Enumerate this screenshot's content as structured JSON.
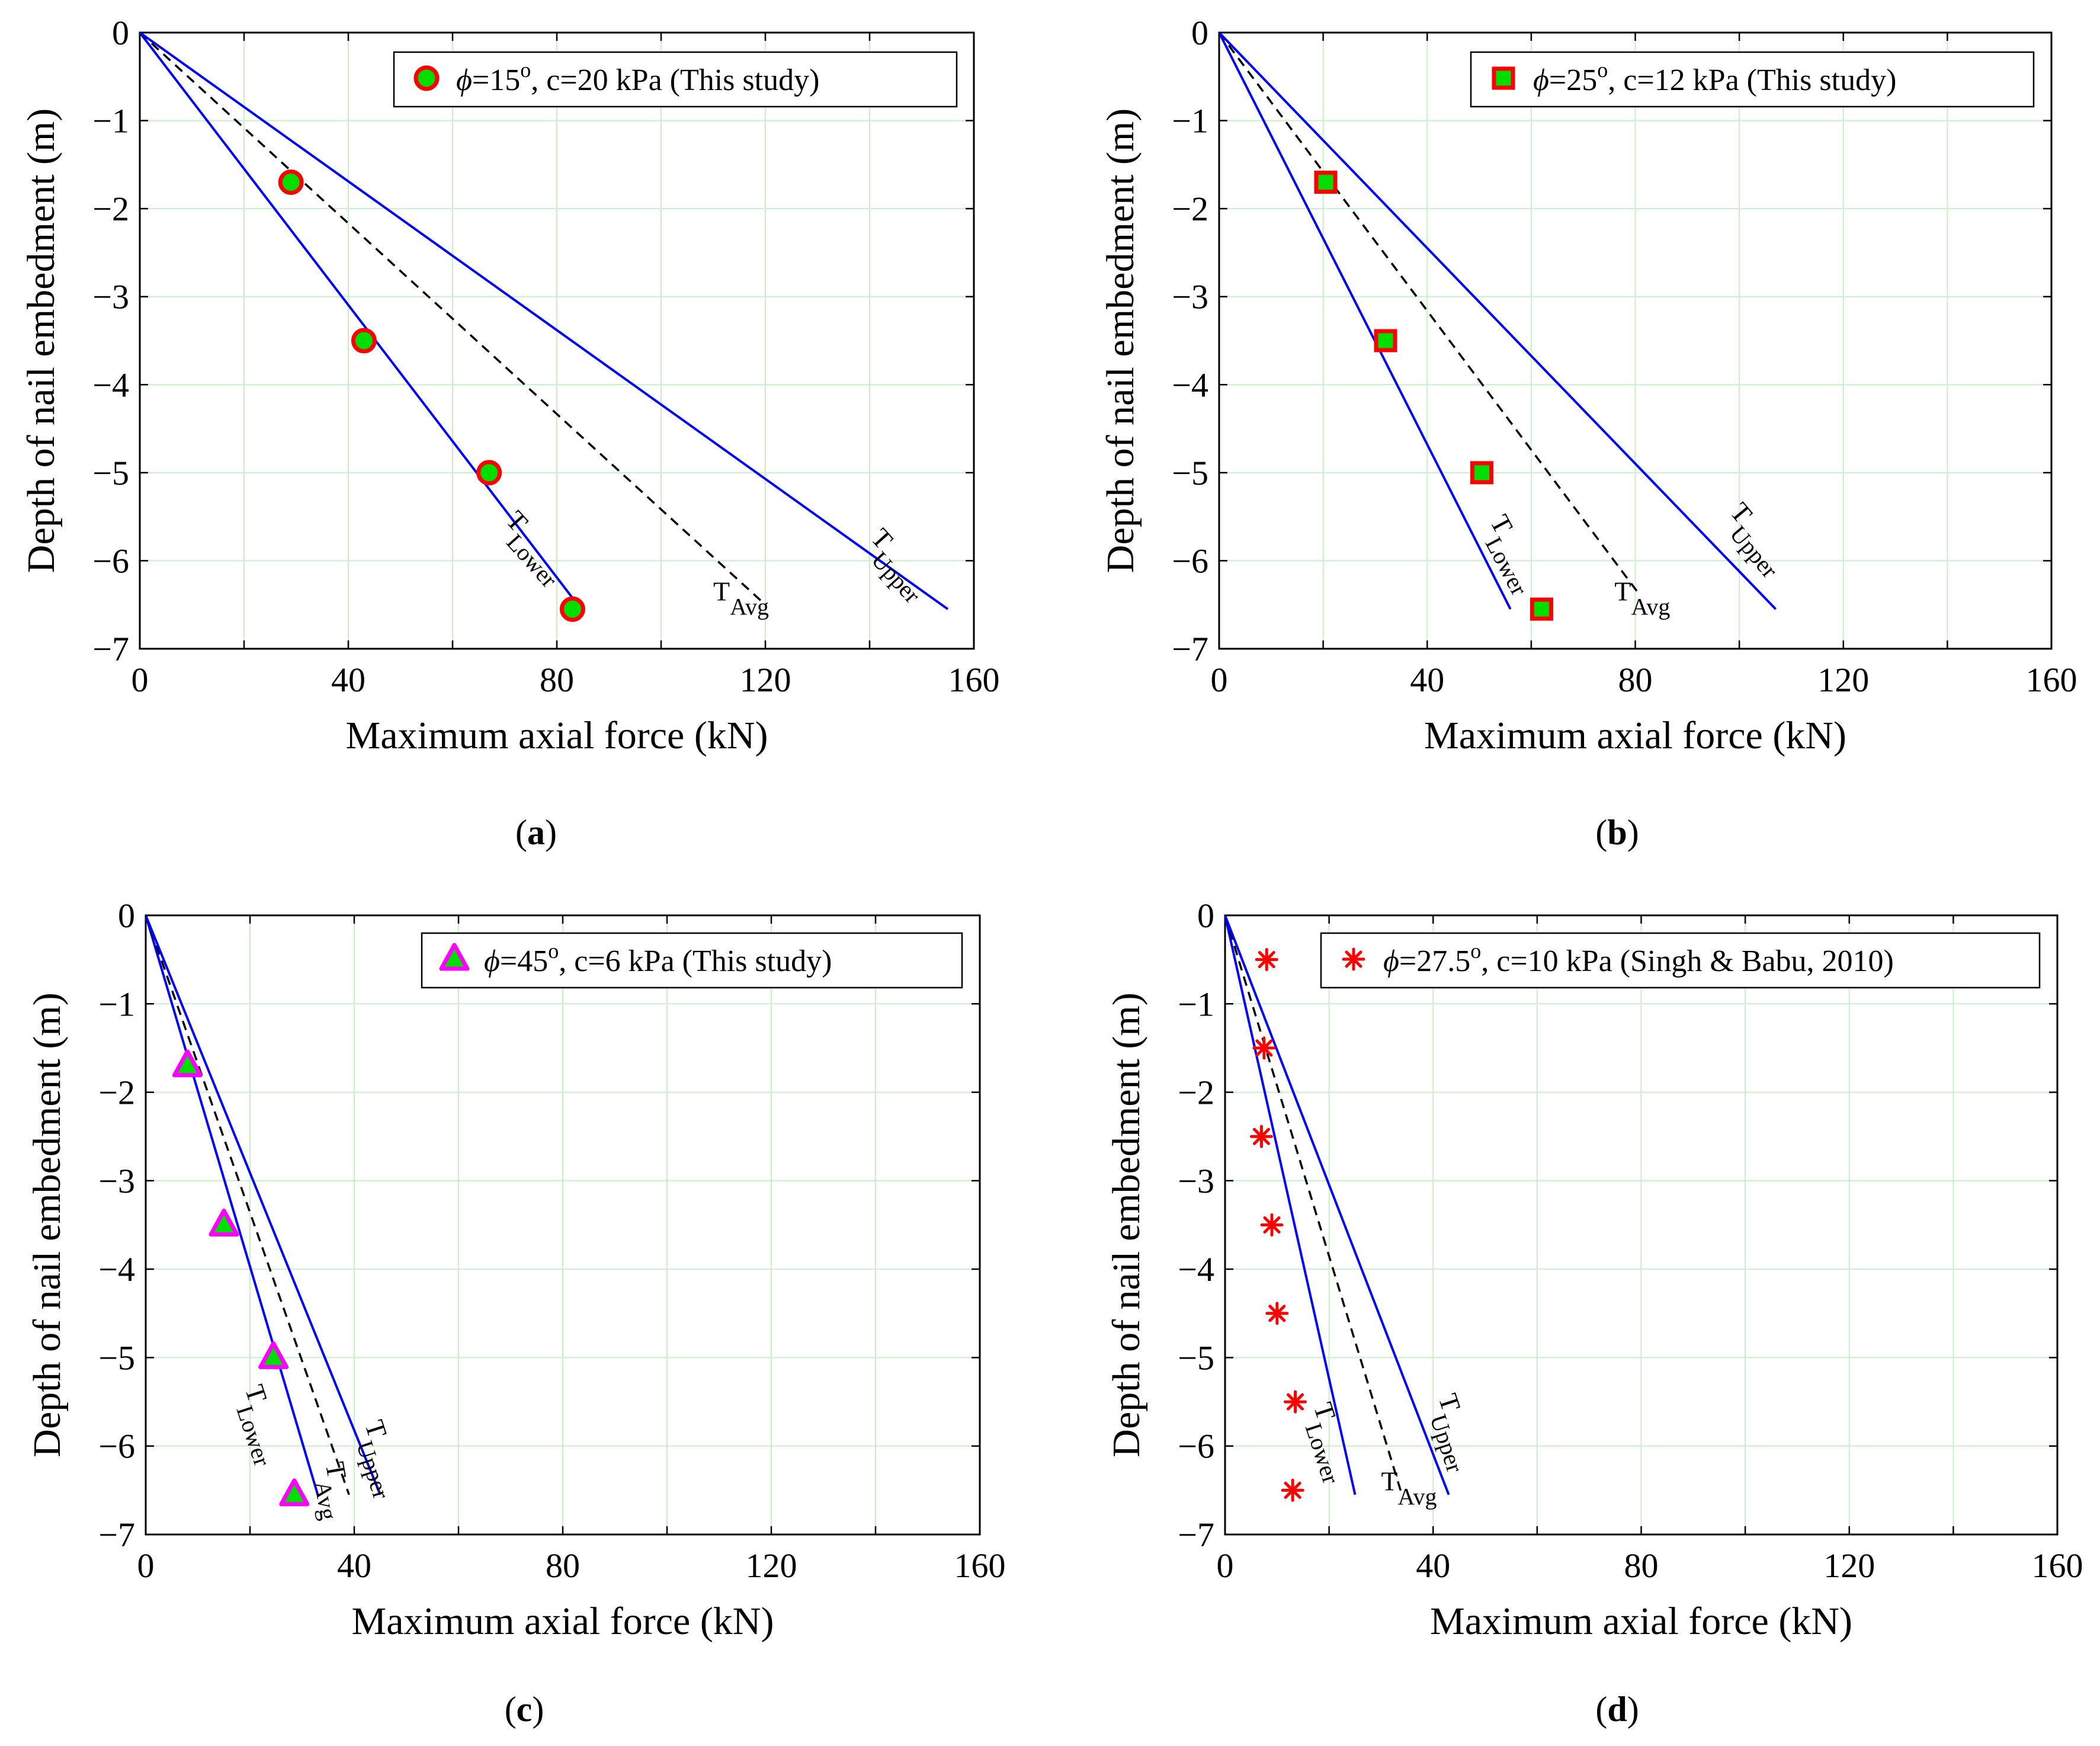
{
  "figure": {
    "xlabel": "Maximum axial force (kN)",
    "ylabel": "Depth of nail embedment (m)",
    "colors": {
      "line": "#0000FF",
      "avg": "#000000",
      "grid": "#C8F0C8",
      "marker_edge_red": "#FF0000",
      "marker_fill_green": "#00DD00",
      "marker_edge_magenta": "#FF00FF",
      "asterisk": "#FF0000"
    }
  },
  "chart_data": [
    {
      "id": "a",
      "caption_label": "a",
      "type": "line",
      "xlim": [
        0,
        160
      ],
      "ylim": [
        -7,
        0
      ],
      "xticks": [
        "0",
        "40",
        "80",
        "120",
        "160"
      ],
      "yticks": [
        "0",
        "−1",
        "−2",
        "−3",
        "−4",
        "−5",
        "−6",
        "−7"
      ],
      "grid": true,
      "legend_position": "top-right",
      "legend": {
        "pre": "=15",
        "sup": "o",
        "post": ", c=20 kPa (This study)"
      },
      "marker": "circle",
      "points": {
        "x": [
          29,
          43,
          67,
          83
        ],
        "y": [
          -1.7,
          -3.5,
          -5.0,
          -6.55
        ]
      },
      "lines": [
        {
          "name": "Lower",
          "x": [
            0,
            84
          ],
          "y": [
            0,
            -6.5
          ],
          "style": "solid"
        },
        {
          "name": "Avg",
          "x": [
            0,
            120
          ],
          "y": [
            0,
            -6.5
          ],
          "style": "dashed"
        },
        {
          "name": "Upper",
          "x": [
            0,
            155
          ],
          "y": [
            0,
            -6.55
          ],
          "style": "solid"
        }
      ],
      "labels": {
        "lower": {
          "main": "T",
          "sub": "Lower"
        },
        "avg": {
          "main": "T",
          "sub": "Avg"
        },
        "upper": {
          "main": "T",
          "sub": "Upper"
        }
      }
    },
    {
      "id": "b",
      "caption_label": "b",
      "type": "line",
      "xlim": [
        0,
        160
      ],
      "ylim": [
        -7,
        0
      ],
      "xticks": [
        "0",
        "40",
        "80",
        "120",
        "160"
      ],
      "yticks": [
        "0",
        "−1",
        "−2",
        "−3",
        "−4",
        "−5",
        "−6",
        "−7"
      ],
      "grid": true,
      "legend_position": "top-right",
      "legend": {
        "pre": "=25",
        "sup": "o",
        "post": ", c=12 kPa (This study)"
      },
      "marker": "square",
      "points": {
        "x": [
          20.5,
          32,
          50.5,
          62
        ],
        "y": [
          -1.7,
          -3.5,
          -5.0,
          -6.55
        ]
      },
      "lines": [
        {
          "name": "Lower",
          "x": [
            0,
            56
          ],
          "y": [
            0,
            -6.55
          ],
          "style": "solid"
        },
        {
          "name": "Avg",
          "x": [
            0,
            81
          ],
          "y": [
            0,
            -6.4
          ],
          "style": "dashed"
        },
        {
          "name": "Upper",
          "x": [
            0,
            107
          ],
          "y": [
            0,
            -6.55
          ],
          "style": "solid"
        }
      ],
      "labels": {
        "lower": {
          "main": "T",
          "sub": "Lower"
        },
        "avg": {
          "main": "T",
          "sub": "Avg"
        },
        "upper": {
          "main": "T",
          "sub": "Upper"
        }
      }
    },
    {
      "id": "c",
      "caption_label": "c",
      "type": "line",
      "xlim": [
        0,
        160
      ],
      "ylim": [
        -7,
        0
      ],
      "xticks": [
        "0",
        "40",
        "80",
        "120",
        "160"
      ],
      "yticks": [
        "0",
        "−1",
        "−2",
        "−3",
        "−4",
        "−5",
        "−6",
        "−7"
      ],
      "grid": true,
      "legend_position": "top-right",
      "legend": {
        "pre": "=45",
        "sup": "o",
        "post": ", c=6 kPa (This study)"
      },
      "marker": "triangle",
      "points": {
        "x": [
          8,
          15,
          24.5,
          28.5
        ],
        "y": [
          -1.7,
          -3.5,
          -5.0,
          -6.55
        ]
      },
      "lines": [
        {
          "name": "Lower",
          "x": [
            0,
            33
          ],
          "y": [
            0,
            -6.55
          ],
          "style": "solid"
        },
        {
          "name": "Avg",
          "x": [
            0,
            39
          ],
          "y": [
            0,
            -6.55
          ],
          "style": "dashed"
        },
        {
          "name": "Upper",
          "x": [
            0,
            45
          ],
          "y": [
            0,
            -6.55
          ],
          "style": "solid"
        }
      ],
      "labels": {
        "lower": {
          "main": "T",
          "sub": "Lower"
        },
        "avg": {
          "main": "T",
          "sub": "Avg"
        },
        "upper": {
          "main": "T",
          "sub": "Upper"
        }
      }
    },
    {
      "id": "d",
      "caption_label": "d",
      "type": "line",
      "xlim": [
        0,
        160
      ],
      "ylim": [
        -7,
        0
      ],
      "xticks": [
        "0",
        "40",
        "80",
        "120",
        "160"
      ],
      "yticks": [
        "0",
        "−1",
        "−2",
        "−3",
        "−4",
        "−5",
        "−6",
        "−7"
      ],
      "grid": true,
      "legend_position": "top-right",
      "legend": {
        "pre": "=27.5",
        "sup": "o",
        "post": ", c=10 kPa (Singh & Babu, 2010)"
      },
      "marker": "asterisk",
      "points": {
        "x": [
          8,
          7.5,
          7,
          9,
          10,
          13.5,
          13
        ],
        "y": [
          -0.5,
          -1.5,
          -2.5,
          -3.5,
          -4.5,
          -5.5,
          -6.5
        ]
      },
      "lines": [
        {
          "name": "Lower",
          "x": [
            0,
            25
          ],
          "y": [
            0,
            -6.55
          ],
          "style": "solid"
        },
        {
          "name": "Avg",
          "x": [
            0,
            34
          ],
          "y": [
            0,
            -6.55
          ],
          "style": "dashed"
        },
        {
          "name": "Upper",
          "x": [
            0,
            43
          ],
          "y": [
            0,
            -6.55
          ],
          "style": "solid"
        }
      ],
      "labels": {
        "lower": {
          "main": "T",
          "sub": "Lower"
        },
        "avg": {
          "main": "T",
          "sub": "Avg"
        },
        "upper": {
          "main": "T",
          "sub": "Upper"
        }
      }
    }
  ]
}
